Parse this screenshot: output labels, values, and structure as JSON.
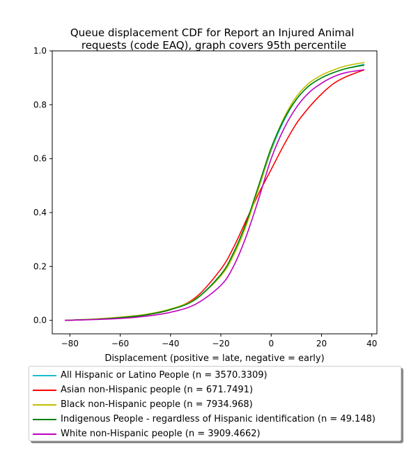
{
  "chart_data": {
    "type": "line",
    "title": "Queue displacement CDF for Report an Injured Animal\nrequests (code EAQ), graph covers 95th percentile",
    "xlabel": "Displacement (positive = late, negative = early)",
    "ylabel": "",
    "xlim": [
      -87,
      42
    ],
    "ylim": [
      -0.05,
      1.0
    ],
    "x_ticks": [
      -80,
      -60,
      -40,
      -20,
      0,
      20,
      40
    ],
    "y_ticks": [
      0.0,
      0.2,
      0.4,
      0.6,
      0.8,
      1.0
    ],
    "x_tick_labels": [
      "−80",
      "−60",
      "−40",
      "−20",
      "0",
      "20",
      "40"
    ],
    "y_tick_labels": [
      "0.0",
      "0.2",
      "0.4",
      "0.6",
      "0.8",
      "1.0"
    ],
    "grid": false,
    "legend_placement": "below",
    "x": [
      -82,
      -70,
      -60,
      -50,
      -40,
      -30,
      -20,
      -15,
      -10,
      -5,
      0,
      5,
      10,
      15,
      20,
      25,
      30,
      37
    ],
    "series": [
      {
        "name": "All Hispanic or Latino People (n = 3570.3309)",
        "color": "#17becf",
        "values": [
          0.0,
          0.004,
          0.01,
          0.02,
          0.04,
          0.08,
          0.17,
          0.25,
          0.36,
          0.49,
          0.63,
          0.74,
          0.82,
          0.87,
          0.9,
          0.92,
          0.935,
          0.95
        ]
      },
      {
        "name": "Asian non-Hispanic people (n = 671.7491)",
        "color": "#ff0000",
        "values": [
          0.0,
          0.004,
          0.01,
          0.02,
          0.04,
          0.085,
          0.19,
          0.27,
          0.37,
          0.47,
          0.56,
          0.65,
          0.73,
          0.79,
          0.84,
          0.88,
          0.905,
          0.93
        ]
      },
      {
        "name": "Black non-Hispanic people (n = 7934.968)",
        "color": "#bfbf00",
        "values": [
          0.0,
          0.005,
          0.012,
          0.022,
          0.042,
          0.08,
          0.165,
          0.24,
          0.35,
          0.49,
          0.635,
          0.75,
          0.83,
          0.88,
          0.91,
          0.93,
          0.945,
          0.957
        ]
      },
      {
        "name": "Indigenous People - regardless of Hispanic identification (n = 49.148)",
        "color": "#008000",
        "values": [
          0.0,
          0.004,
          0.01,
          0.02,
          0.04,
          0.078,
          0.17,
          0.25,
          0.36,
          0.5,
          0.64,
          0.745,
          0.82,
          0.87,
          0.9,
          0.92,
          0.935,
          0.947
        ]
      },
      {
        "name": "White non-Hispanic people (n = 3909.4662)",
        "color": "#bf00bf",
        "values": [
          0.0,
          0.003,
          0.007,
          0.015,
          0.03,
          0.06,
          0.13,
          0.2,
          0.31,
          0.45,
          0.6,
          0.71,
          0.79,
          0.845,
          0.88,
          0.905,
          0.92,
          0.93
        ]
      }
    ]
  }
}
